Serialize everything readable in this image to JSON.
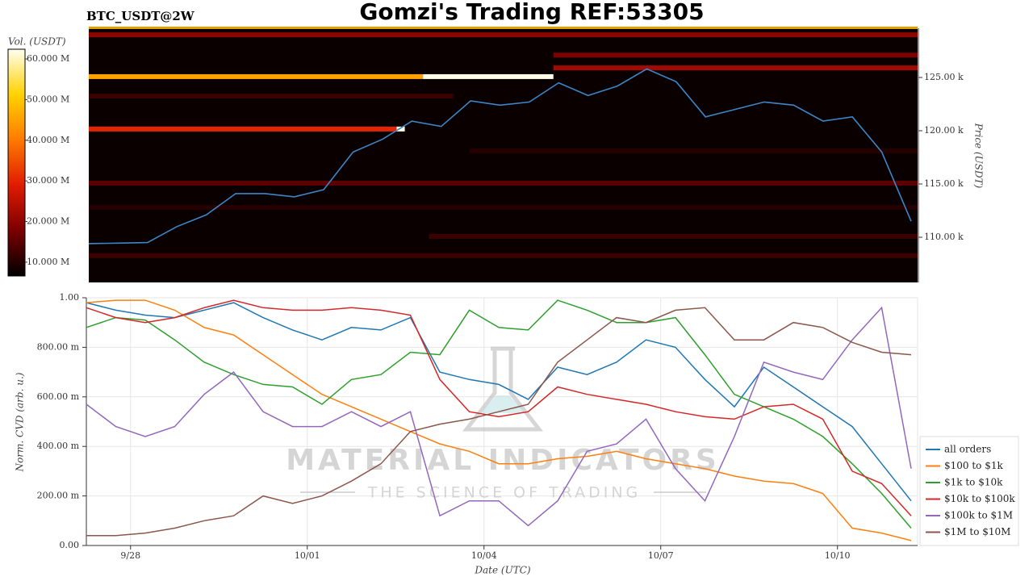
{
  "chart_data": [
    {
      "type": "heatmap",
      "title": "Gomzi's Trading REF:53305",
      "subtitle": "BTC_USDT@2W",
      "ylabel": "Price (USDT)",
      "x": [
        -0.75,
        -0.25,
        0.25,
        0.75,
        1.25,
        1.75,
        2.25,
        2.75,
        3.25,
        3.75,
        4.25,
        4.75,
        5.25,
        5.75,
        6.25,
        6.75,
        7.25,
        7.75,
        8.25,
        8.75,
        9.25,
        9.75,
        10.25,
        10.75,
        11.25,
        11.75,
        12.25,
        12.75,
        13.25
      ],
      "xlim": [
        -0.75,
        13.36
      ],
      "ylim": [
        105760,
        129620
      ],
      "yticks": [
        {
          "value": 110000,
          "label": "110.00 k"
        },
        {
          "value": 115000,
          "label": "115.00 k"
        },
        {
          "value": 120000,
          "label": "120.00 k"
        },
        {
          "value": 125000,
          "label": "125.00 k"
        }
      ],
      "series": [
        {
          "color": "#3b86c6",
          "values": [
            109400,
            109450,
            109500,
            111000,
            112100,
            114100,
            114100,
            113800,
            114470,
            118000,
            119200,
            120900,
            120400,
            122800,
            122400,
            122700,
            124500,
            123300,
            124200,
            125800,
            124600,
            121300,
            122000,
            122700,
            122400,
            120900,
            121300,
            118000,
            111500
          ]
        }
      ],
      "colorbar": {
        "label": "Vol. (USDT)",
        "colors": [
          "#000000",
          "#7a0000",
          "#e01b00",
          "#ff7a00",
          "#ffd200",
          "#fffff0"
        ],
        "lim": [
          6600000,
          62400000
        ],
        "ticks": [
          {
            "value": 10000000,
            "label": "10.000 M"
          },
          {
            "value": 20000000,
            "label": "20.000 M"
          },
          {
            "value": 30000000,
            "label": "30.000 M"
          },
          {
            "value": 40000000,
            "label": "40.000 M"
          },
          {
            "value": 50000000,
            "label": "50.000 M"
          },
          {
            "value": 60000000,
            "label": "60.000 M"
          }
        ]
      },
      "levels": [
        {
          "price": 129000,
          "start": -0.75,
          "end": 13.36,
          "volume": 20000000
        },
        {
          "price": 127100,
          "start": 7.16,
          "end": 13.36,
          "volume": 18000000
        },
        {
          "price": 125900,
          "start": 7.16,
          "end": 13.36,
          "volume": 22000000
        },
        {
          "price": 125080,
          "start": -0.75,
          "end": 4.94,
          "volume": 45000000
        },
        {
          "price": 125080,
          "start": 4.94,
          "end": 7.16,
          "volume": 62000000
        },
        {
          "price": 123250,
          "start": -0.75,
          "end": 5.45,
          "volume": 12000000
        },
        {
          "price": 120160,
          "start": -0.75,
          "end": 4.49,
          "volume": 30000000
        },
        {
          "price": 120160,
          "start": 4.49,
          "end": 4.63,
          "volume": 62000000
        },
        {
          "price": 118100,
          "start": 5.73,
          "end": 13.36,
          "volume": 10000000
        },
        {
          "price": 115080,
          "start": -0.75,
          "end": 13.36,
          "volume": 15000000
        },
        {
          "price": 112800,
          "start": -0.75,
          "end": 13.36,
          "volume": 10000000
        },
        {
          "price": 110080,
          "start": 5.04,
          "end": 13.36,
          "volume": 12000000
        },
        {
          "price": 108280,
          "start": -0.75,
          "end": 13.36,
          "volume": 12000000
        }
      ]
    },
    {
      "type": "line",
      "xlabel": "Date (UTC)",
      "ylabel": "Norm. CVD (arb. u.)",
      "x": [
        -0.75,
        -0.25,
        0.25,
        0.75,
        1.25,
        1.75,
        2.25,
        2.75,
        3.25,
        3.75,
        4.25,
        4.75,
        5.25,
        5.75,
        6.25,
        6.75,
        7.25,
        7.75,
        8.25,
        8.75,
        9.25,
        9.75,
        10.25,
        10.75,
        11.25,
        11.75,
        12.25,
        12.75,
        13.25
      ],
      "xlim": [
        -0.75,
        13.36
      ],
      "xticks": [
        {
          "value": 0,
          "label": "9/28"
        },
        {
          "value": 3,
          "label": "10/01"
        },
        {
          "value": 6,
          "label": "10/04"
        },
        {
          "value": 9,
          "label": "10/07"
        },
        {
          "value": 12,
          "label": "10/10"
        }
      ],
      "ylim": [
        0,
        1
      ],
      "yticks": [
        {
          "value": 0,
          "label": "0.00"
        },
        {
          "value": 0.2,
          "label": "200.00 m"
        },
        {
          "value": 0.4,
          "label": "400.00 m"
        },
        {
          "value": 0.6,
          "label": "600.00 m"
        },
        {
          "value": 0.8,
          "label": "800.00 m"
        },
        {
          "value": 1,
          "label": "1.00"
        }
      ],
      "grid": true,
      "legend": "right",
      "series": [
        {
          "name": "all orders",
          "color": "#1f77b4",
          "values": [
            0.98,
            0.95,
            0.93,
            0.92,
            0.95,
            0.98,
            0.92,
            0.87,
            0.83,
            0.88,
            0.87,
            0.92,
            0.7,
            0.67,
            0.65,
            0.59,
            0.72,
            0.69,
            0.74,
            0.83,
            0.8,
            0.67,
            0.56,
            0.72,
            0.64,
            0.56,
            0.48,
            0.33,
            0.18
          ]
        },
        {
          "name": "$100 to $1k",
          "color": "#ff7f0e",
          "values": [
            0.98,
            0.99,
            0.99,
            0.95,
            0.88,
            0.85,
            0.77,
            0.69,
            0.61,
            0.56,
            0.51,
            0.46,
            0.41,
            0.38,
            0.33,
            0.33,
            0.35,
            0.36,
            0.38,
            0.35,
            0.33,
            0.31,
            0.28,
            0.26,
            0.25,
            0.21,
            0.07,
            0.05,
            0.02
          ]
        },
        {
          "name": "$1k to $10k",
          "color": "#2ca02c",
          "values": [
            0.88,
            0.92,
            0.91,
            0.83,
            0.74,
            0.69,
            0.65,
            0.64,
            0.57,
            0.67,
            0.69,
            0.78,
            0.77,
            0.95,
            0.88,
            0.87,
            0.99,
            0.95,
            0.9,
            0.9,
            0.92,
            0.77,
            0.61,
            0.56,
            0.51,
            0.44,
            0.33,
            0.21,
            0.07
          ]
        },
        {
          "name": "$10k to $100k",
          "color": "#d62728",
          "values": [
            0.96,
            0.92,
            0.9,
            0.92,
            0.96,
            0.99,
            0.96,
            0.95,
            0.95,
            0.96,
            0.95,
            0.93,
            0.67,
            0.54,
            0.52,
            0.54,
            0.64,
            0.61,
            0.59,
            0.57,
            0.54,
            0.52,
            0.51,
            0.56,
            0.57,
            0.51,
            0.3,
            0.25,
            0.12
          ]
        },
        {
          "name": "$100k to $1M",
          "color": "#9467bd",
          "values": [
            0.57,
            0.48,
            0.44,
            0.48,
            0.61,
            0.7,
            0.54,
            0.48,
            0.48,
            0.54,
            0.48,
            0.54,
            0.12,
            0.18,
            0.18,
            0.08,
            0.18,
            0.38,
            0.41,
            0.51,
            0.31,
            0.18,
            0.44,
            0.74,
            0.7,
            0.67,
            0.83,
            0.96,
            0.31
          ]
        },
        {
          "name": "$1M to $10M",
          "color": "#8c564b",
          "values": [
            0.04,
            0.04,
            0.05,
            0.07,
            0.1,
            0.12,
            0.2,
            0.17,
            0.2,
            0.26,
            0.33,
            0.46,
            0.49,
            0.51,
            0.54,
            0.57,
            0.74,
            0.83,
            0.92,
            0.9,
            0.95,
            0.96,
            0.83,
            0.83,
            0.9,
            0.88,
            0.82,
            0.78,
            0.77
          ]
        }
      ]
    }
  ],
  "watermark": {
    "name": "MATERIAL INDICATORS",
    "tagline": "THE SCIENCE OF TRADING"
  }
}
